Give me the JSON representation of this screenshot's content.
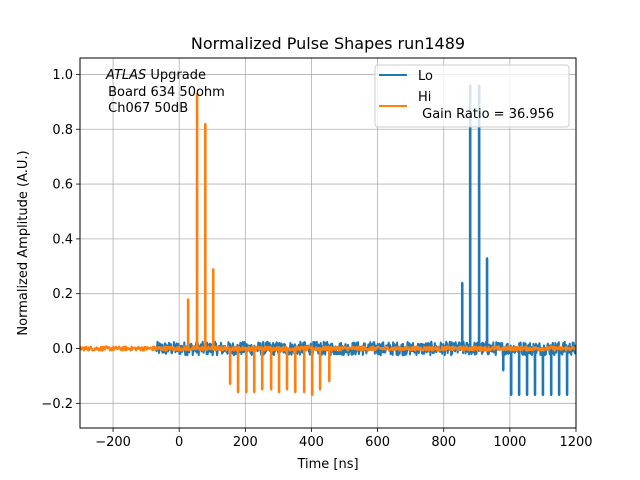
{
  "chart_data": {
    "type": "line",
    "title": "Normalized Pulse Shapes run1489",
    "xlabel": "Time [ns]",
    "ylabel": "Normalized Amplitude (A.U.)",
    "xlim": [
      -300,
      1200
    ],
    "ylim": [
      -0.29,
      1.06
    ],
    "xticks": [
      -200,
      0,
      200,
      400,
      600,
      800,
      1000,
      1200
    ],
    "xtick_labels": [
      "−200",
      "0",
      "200",
      "400",
      "600",
      "800",
      "1000",
      "1200"
    ],
    "yticks": [
      -0.2,
      0.0,
      0.2,
      0.4,
      0.6,
      0.8,
      1.0
    ],
    "ytick_labels": [
      "−0.2",
      "0.0",
      "0.2",
      "0.4",
      "0.6",
      "0.8",
      "1.0"
    ],
    "grid": true,
    "legend_position": "top-right",
    "annotation": {
      "italic": "ATLAS",
      "line1_rest": " Upgrade",
      "line2": " Board 634 50ohm",
      "line3": " Ch067 50dB"
    },
    "series": [
      {
        "name": "Lo",
        "color": "#1f77b4",
        "x_start": -70,
        "x_end": 1200,
        "baseline_noise": 0.025,
        "spikes": [
          {
            "x": 856,
            "y": 0.24
          },
          {
            "x": 880,
            "y": 0.96
          },
          {
            "x": 907,
            "y": 0.96
          },
          {
            "x": 931,
            "y": 0.33
          },
          {
            "x": 980,
            "y": -0.08
          },
          {
            "x": 1004,
            "y": -0.17
          },
          {
            "x": 1028,
            "y": -0.17
          },
          {
            "x": 1052,
            "y": -0.17
          },
          {
            "x": 1076,
            "y": -0.17
          },
          {
            "x": 1100,
            "y": -0.17
          },
          {
            "x": 1125,
            "y": -0.17
          },
          {
            "x": 1149,
            "y": -0.17
          },
          {
            "x": 1173,
            "y": -0.17
          }
        ]
      },
      {
        "name": "Hi\n Gain Ratio = 36.956",
        "legend_line1": "Hi",
        "legend_line2": " Gain Ratio = 36.956",
        "color": "#ff7f0e",
        "x_start": -300,
        "x_end": 1200,
        "baseline_noise": 0.008,
        "spikes": [
          {
            "x": 27,
            "y": 0.18
          },
          {
            "x": 54,
            "y": 0.93
          },
          {
            "x": 79,
            "y": 0.82
          },
          {
            "x": 103,
            "y": 0.29
          },
          {
            "x": 154,
            "y": -0.13
          },
          {
            "x": 178,
            "y": -0.16
          },
          {
            "x": 203,
            "y": -0.16
          },
          {
            "x": 227,
            "y": -0.16
          },
          {
            "x": 251,
            "y": -0.15
          },
          {
            "x": 278,
            "y": -0.15
          },
          {
            "x": 302,
            "y": -0.16
          },
          {
            "x": 326,
            "y": -0.15
          },
          {
            "x": 351,
            "y": -0.16
          },
          {
            "x": 378,
            "y": -0.16
          },
          {
            "x": 402,
            "y": -0.17
          },
          {
            "x": 426,
            "y": -0.15
          },
          {
            "x": 454,
            "y": -0.12
          }
        ]
      }
    ]
  }
}
